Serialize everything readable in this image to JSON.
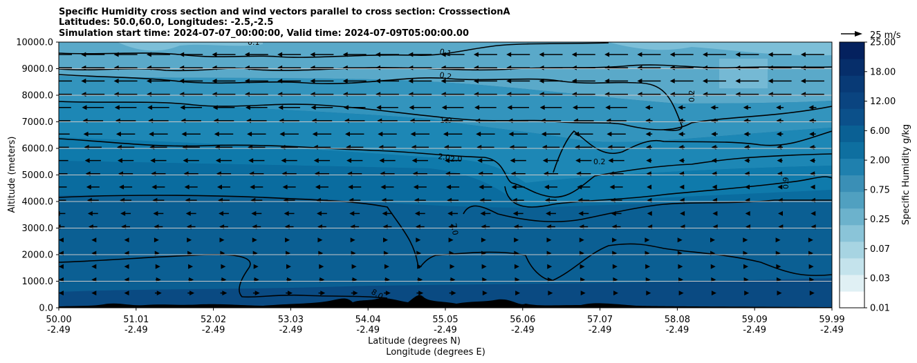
{
  "chart_data": {
    "type": "contourf",
    "title_lines": [
      "Specific Humidity cross section and wind vectors parallel to cross section: CrosssectionA",
      "Latitudes: 50.0,60.0, Longitudes: -2.5,-2.5",
      "Simulation start time: 2024-07-07_00:00:00, Valid time: 2024-07-09T05:00:00.00"
    ],
    "ylabel": "Altitude (meters)",
    "xlabel_lines": [
      "Latitude (degrees N)",
      "Longitude (degrees E)"
    ],
    "ylim": [
      0,
      10000
    ],
    "y_ticks": [
      "0.0",
      "1000.0",
      "2000.0",
      "3000.0",
      "4000.0",
      "5000.0",
      "6000.0",
      "7000.0",
      "8000.0",
      "9000.0",
      "10000.0"
    ],
    "x_ticks_lat": [
      "50.00",
      "51.01",
      "52.02",
      "53.03",
      "54.04",
      "55.05",
      "56.06",
      "57.07",
      "58.08",
      "59.09",
      "59.99"
    ],
    "x_ticks_lon": [
      "-2.49",
      "-2.49",
      "-2.49",
      "-2.49",
      "-2.49",
      "-2.49",
      "-2.49",
      "-2.49",
      "-2.49",
      "-2.49",
      "-2.49"
    ],
    "colorbar": {
      "label": "Specific Humidity g/kg",
      "levels": [
        "0.01",
        "0.03",
        "0.07",
        "0.25",
        "0.75",
        "2.00",
        "6.00",
        "12.00",
        "18.00",
        "25.00"
      ],
      "colors": [
        "#ffffff",
        "#e0f0f4",
        "#c4e3ec",
        "#a7d4e2",
        "#8ac4d8",
        "#6cb2cc",
        "#50a0c0",
        "#3a8fb6",
        "#1f80ae",
        "#0e6fa0",
        "#0a6094",
        "#0b508a",
        "#0a4480",
        "#083a76",
        "#062e6a",
        "#04215e"
      ]
    },
    "contour_labels": [
      "0.1",
      "0.1",
      "0.2",
      "0.2",
      "0.2",
      "1.0",
      "2.0",
      "2.0",
      "2.0",
      "8.0",
      "0.9"
    ],
    "quiver_key": "25 m/s",
    "terrain_color": "#000000"
  }
}
